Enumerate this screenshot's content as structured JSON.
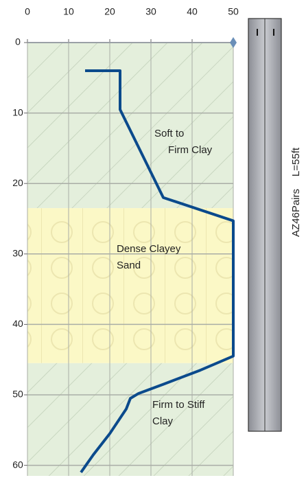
{
  "chart_data": {
    "type": "line",
    "x": [
      14,
      22.5,
      22.5,
      33,
      50,
      50,
      42,
      33,
      27,
      25,
      24,
      20,
      16,
      13
    ],
    "y": [
      4,
      4,
      9.5,
      22,
      25.3,
      44.5,
      46.5,
      48.5,
      49.8,
      50.5,
      52,
      55.5,
      58.5,
      61
    ],
    "color": "#0b4a8c",
    "xlim": [
      0,
      50
    ],
    "xticks": [
      0,
      10,
      20,
      30,
      40,
      50
    ],
    "ylim": [
      0,
      61.5
    ],
    "yticks": [
      0,
      10,
      20,
      30,
      40,
      50,
      60
    ],
    "grid": true,
    "zones": [
      {
        "from": 0,
        "to": 23.5,
        "color": "#e4efdc"
      },
      {
        "from": 23.5,
        "to": 45.5,
        "color": "#fbf8c6"
      },
      {
        "from": 45.5,
        "to": 61.5,
        "color": "#e4efdc"
      }
    ],
    "annotations": [
      {
        "lines": [
          "Soft to",
          "Firm Clay"
        ]
      },
      {
        "lines": [
          "Dense Clayey",
          "Sand"
        ]
      },
      {
        "lines": [
          "Firm to Stiff",
          "Clay"
        ]
      }
    ],
    "pile": {
      "label": "AZ46Pairs",
      "length_label": "L=55ft"
    }
  }
}
